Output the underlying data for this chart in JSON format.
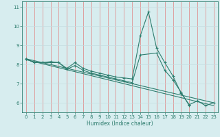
{
  "xlabel": "Humidex (Indice chaleur)",
  "x": [
    0,
    1,
    2,
    3,
    4,
    5,
    6,
    7,
    8,
    9,
    10,
    11,
    12,
    13,
    14,
    15,
    16,
    17,
    18,
    19,
    20,
    21,
    22,
    23
  ],
  "line1": [
    8.3,
    8.1,
    8.1,
    8.15,
    8.1,
    7.8,
    8.1,
    7.8,
    7.65,
    7.55,
    7.45,
    7.35,
    7.3,
    7.25,
    9.5,
    10.75,
    8.85,
    8.1,
    7.4,
    6.5,
    5.9,
    6.1,
    5.85,
    6.0
  ],
  "line2_x": [
    0,
    1,
    2,
    3,
    4,
    5,
    6,
    7,
    8,
    9,
    10,
    11,
    12,
    13,
    14,
    16,
    17,
    18,
    19,
    20
  ],
  "line2_y": [
    8.3,
    8.1,
    8.1,
    8.1,
    8.1,
    7.75,
    7.95,
    7.7,
    7.55,
    7.45,
    7.35,
    7.25,
    7.15,
    7.05,
    8.5,
    8.6,
    7.7,
    7.2,
    6.55,
    5.85
  ],
  "line3_x": [
    0,
    23
  ],
  "line3_y": [
    8.3,
    6.0
  ],
  "line4_x": [
    0,
    23
  ],
  "line4_y": [
    8.25,
    5.85
  ],
  "color": "#2e7d6e",
  "bg_color": "#d7edef",
  "grid_color_v": "#e08080",
  "grid_color_h": "#c5dde0",
  "ylim": [
    5.5,
    11.3
  ],
  "xlim": [
    -0.5,
    23.5
  ],
  "yticks": [
    6,
    7,
    8,
    9,
    10,
    11
  ],
  "xticks": [
    0,
    1,
    2,
    3,
    4,
    5,
    6,
    7,
    8,
    9,
    10,
    11,
    12,
    13,
    14,
    15,
    16,
    17,
    18,
    19,
    20,
    21,
    22,
    23
  ]
}
